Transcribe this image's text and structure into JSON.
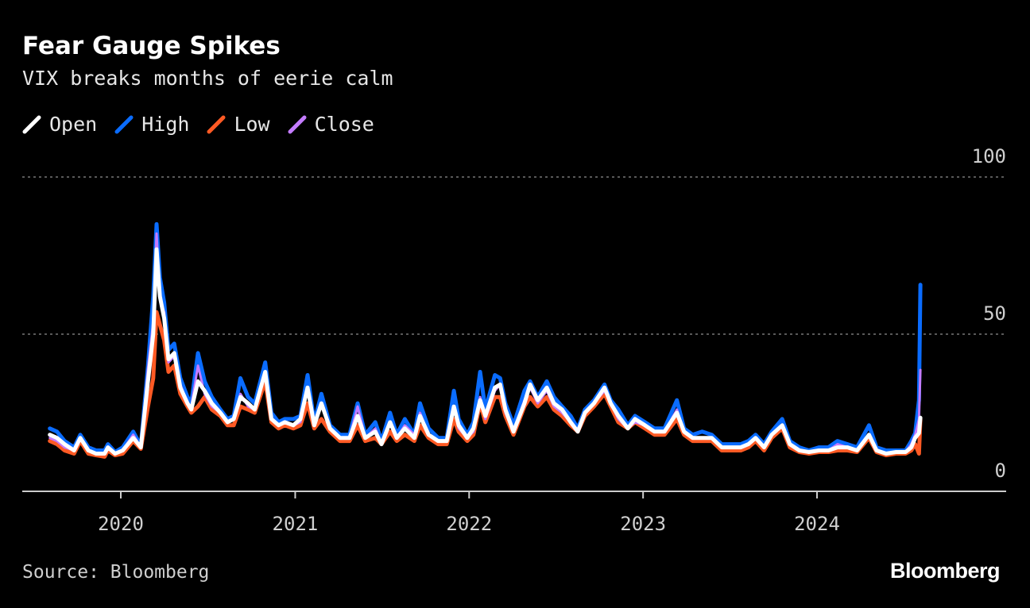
{
  "chart_data": {
    "type": "line",
    "title": "Fear Gauge Spikes",
    "subtitle": "VIX breaks months of eerie calm",
    "series_names": [
      "Open",
      "High",
      "Low",
      "Close"
    ],
    "colors": {
      "Open": "#ffffff",
      "High": "#0a6cff",
      "Low": "#ff5a24",
      "Close": "#c47cff"
    },
    "x_ticks": [
      "2020",
      "2021",
      "2022",
      "2023",
      "2024"
    ],
    "y_ticks": [
      0,
      50,
      100
    ],
    "ylim": [
      0,
      100
    ],
    "xlim": [
      "2019-08-01",
      "2024-12-31"
    ],
    "grid": "horizontal dotted",
    "legend": "top-left",
    "columns": [
      "date",
      "open",
      "high",
      "low",
      "close"
    ],
    "rows": [
      [
        "2019-08-05",
        18,
        20,
        16,
        17
      ],
      [
        "2019-08-20",
        17,
        19,
        15,
        16
      ],
      [
        "2019-09-05",
        15,
        16,
        13,
        14
      ],
      [
        "2019-09-25",
        13,
        14,
        12,
        13
      ],
      [
        "2019-10-08",
        17,
        18,
        16,
        17
      ],
      [
        "2019-10-25",
        13,
        14,
        12,
        13
      ],
      [
        "2019-11-10",
        12,
        13,
        11.5,
        12
      ],
      [
        "2019-11-28",
        12,
        13,
        11,
        12
      ],
      [
        "2019-12-05",
        14,
        15,
        13,
        14
      ],
      [
        "2019-12-20",
        12,
        12.5,
        11.5,
        12
      ],
      [
        "2020-01-05",
        13,
        14,
        12,
        13
      ],
      [
        "2020-01-27",
        17,
        19,
        16,
        18
      ],
      [
        "2020-02-12",
        14,
        14.5,
        13.5,
        14
      ],
      [
        "2020-02-27",
        35,
        40,
        27,
        39
      ],
      [
        "2020-03-09",
        50,
        62,
        36,
        54
      ],
      [
        "2020-03-16",
        77,
        85,
        57,
        82
      ],
      [
        "2020-03-23",
        62,
        68,
        53,
        61
      ],
      [
        "2020-04-01",
        55,
        60,
        48,
        57
      ],
      [
        "2020-04-10",
        42,
        45,
        38,
        41
      ],
      [
        "2020-04-22",
        44,
        47,
        40,
        43
      ],
      [
        "2020-05-05",
        33,
        36,
        31,
        34
      ],
      [
        "2020-05-20",
        28,
        30,
        27,
        28
      ],
      [
        "2020-05-28",
        26,
        28,
        25,
        27
      ],
      [
        "2020-06-11",
        35,
        44,
        27,
        40
      ],
      [
        "2020-06-25",
        32,
        35,
        30,
        31
      ],
      [
        "2020-07-10",
        28,
        30,
        26,
        27
      ],
      [
        "2020-07-28",
        25,
        26,
        24,
        25
      ],
      [
        "2020-08-12",
        22,
        23,
        21,
        22
      ],
      [
        "2020-08-25",
        23,
        24,
        21,
        23
      ],
      [
        "2020-09-08",
        30,
        36,
        27,
        31
      ],
      [
        "2020-09-24",
        28,
        30,
        26,
        27
      ],
      [
        "2020-10-08",
        26,
        28,
        25,
        26
      ],
      [
        "2020-10-30",
        38,
        41,
        35,
        38
      ],
      [
        "2020-11-12",
        23,
        25,
        22,
        23
      ],
      [
        "2020-11-27",
        21,
        22,
        20,
        21
      ],
      [
        "2020-12-10",
        22,
        23,
        21,
        22
      ],
      [
        "2020-12-28",
        21,
        23,
        20,
        21
      ],
      [
        "2021-01-12",
        23,
        24,
        21,
        22
      ],
      [
        "2021-01-27",
        33,
        37,
        28,
        33
      ],
      [
        "2021-02-10",
        21,
        22,
        20,
        21
      ],
      [
        "2021-02-25",
        28,
        31,
        23,
        28
      ],
      [
        "2021-03-15",
        20,
        21,
        19,
        20
      ],
      [
        "2021-04-05",
        17,
        18,
        16,
        17
      ],
      [
        "2021-04-25",
        17,
        18,
        16,
        17
      ],
      [
        "2021-05-12",
        24,
        28,
        21,
        27
      ],
      [
        "2021-05-28",
        17,
        18,
        16,
        17
      ],
      [
        "2021-06-18",
        19,
        22,
        17,
        20
      ],
      [
        "2021-07-01",
        15,
        16,
        15,
        15
      ],
      [
        "2021-07-19",
        22,
        25,
        19,
        22
      ],
      [
        "2021-08-02",
        17,
        18,
        16,
        17
      ],
      [
        "2021-08-19",
        20,
        23,
        18,
        21
      ],
      [
        "2021-09-08",
        17,
        18,
        16,
        18
      ],
      [
        "2021-09-20",
        24,
        28,
        21,
        25
      ],
      [
        "2021-10-08",
        18,
        20,
        17,
        18
      ],
      [
        "2021-10-28",
        16,
        17,
        15,
        16
      ],
      [
        "2021-11-15",
        16,
        17,
        15,
        16
      ],
      [
        "2021-11-30",
        27,
        32,
        23,
        27
      ],
      [
        "2021-12-10",
        21,
        23,
        19,
        20
      ],
      [
        "2021-12-28",
        17,
        18,
        16,
        17
      ],
      [
        "2022-01-10",
        20,
        22,
        18,
        19
      ],
      [
        "2022-01-24",
        29,
        38,
        28,
        30
      ],
      [
        "2022-02-04",
        24,
        26,
        22,
        23
      ],
      [
        "2022-02-24",
        33,
        37,
        30,
        32
      ],
      [
        "2022-03-07",
        34,
        36,
        30,
        34
      ],
      [
        "2022-03-18",
        26,
        28,
        24,
        25
      ],
      [
        "2022-04-04",
        19,
        21,
        18,
        19
      ],
      [
        "2022-04-27",
        28,
        32,
        27,
        29
      ],
      [
        "2022-05-09",
        34,
        35,
        30,
        33
      ],
      [
        "2022-05-25",
        29,
        30,
        27,
        28
      ],
      [
        "2022-06-13",
        33,
        35,
        30,
        32
      ],
      [
        "2022-06-28",
        28,
        30,
        26,
        27
      ],
      [
        "2022-07-15",
        26,
        27,
        24,
        25
      ],
      [
        "2022-08-02",
        22,
        24,
        21,
        22
      ],
      [
        "2022-08-17",
        19,
        20,
        19,
        19.5
      ],
      [
        "2022-09-01",
        25,
        26,
        24,
        25
      ],
      [
        "2022-09-20",
        28,
        29,
        27,
        28
      ],
      [
        "2022-10-12",
        33,
        34,
        31,
        32
      ],
      [
        "2022-10-25",
        28,
        29,
        27,
        28
      ],
      [
        "2022-11-10",
        24,
        26,
        22,
        23
      ],
      [
        "2022-11-30",
        20,
        21,
        20,
        20
      ],
      [
        "2022-12-15",
        23,
        24,
        22,
        22
      ],
      [
        "2023-01-05",
        21,
        22,
        20,
        21
      ],
      [
        "2023-01-25",
        19,
        20,
        18,
        19
      ],
      [
        "2023-02-15",
        19,
        20,
        18,
        19
      ],
      [
        "2023-03-13",
        25,
        29,
        23,
        26
      ],
      [
        "2023-03-28",
        19,
        20,
        18,
        19
      ],
      [
        "2023-04-15",
        17,
        18,
        16,
        17
      ],
      [
        "2023-05-05",
        17,
        19,
        16,
        17
      ],
      [
        "2023-05-25",
        17,
        18,
        16,
        17
      ],
      [
        "2023-06-15",
        14,
        15,
        13,
        14
      ],
      [
        "2023-07-05",
        14,
        15,
        13,
        14
      ],
      [
        "2023-07-25",
        14,
        15,
        13,
        14
      ],
      [
        "2023-08-10",
        15,
        16,
        14,
        15
      ],
      [
        "2023-08-25",
        17,
        18,
        16,
        17
      ],
      [
        "2023-09-12",
        14,
        15,
        13,
        14
      ],
      [
        "2023-09-28",
        18,
        19,
        17,
        18
      ],
      [
        "2023-10-20",
        21,
        23,
        20,
        21
      ],
      [
        "2023-11-05",
        15,
        16,
        14,
        15
      ],
      [
        "2023-11-25",
        13,
        14,
        12.5,
        13
      ],
      [
        "2023-12-15",
        12.5,
        13,
        12,
        12.5
      ],
      [
        "2024-01-05",
        13,
        14,
        12.5,
        13
      ],
      [
        "2024-01-25",
        13,
        14,
        12.5,
        13
      ],
      [
        "2024-02-13",
        14,
        16,
        13,
        15
      ],
      [
        "2024-03-05",
        14,
        15,
        13,
        14
      ],
      [
        "2024-03-25",
        13,
        14,
        12.5,
        13
      ],
      [
        "2024-04-19",
        18,
        21,
        17,
        18
      ],
      [
        "2024-05-05",
        13,
        14,
        12.5,
        13
      ],
      [
        "2024-05-25",
        12,
        13,
        11.5,
        12
      ],
      [
        "2024-06-15",
        12.5,
        13,
        12,
        12.5
      ],
      [
        "2024-07-05",
        12.5,
        13,
        12,
        12.5
      ],
      [
        "2024-07-17",
        14,
        16,
        13,
        15
      ],
      [
        "2024-07-25",
        17,
        18.5,
        15,
        18
      ],
      [
        "2024-08-02",
        18.5,
        29,
        12,
        23
      ],
      [
        "2024-08-05",
        23.4,
        65.7,
        23,
        38.6
      ]
    ]
  },
  "footer": {
    "source": "Source: Bloomberg",
    "logo": "Bloomberg"
  }
}
